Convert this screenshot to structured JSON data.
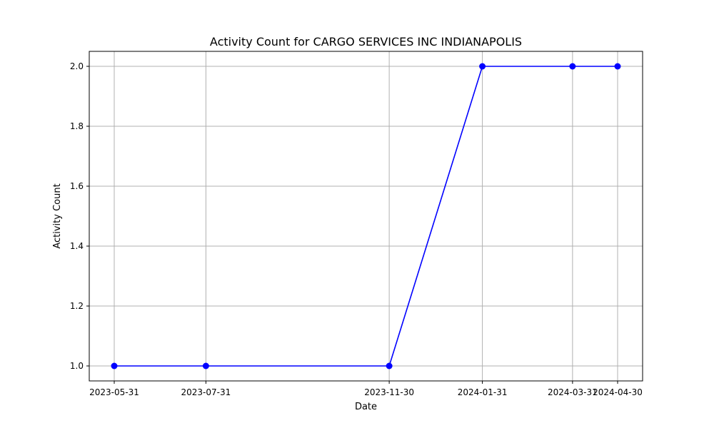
{
  "chart_data": {
    "type": "line",
    "title": "Activity Count for CARGO SERVICES INC INDIANAPOLIS",
    "xlabel": "Date",
    "ylabel": "Activity Count",
    "x": [
      "2023-05-31",
      "2023-07-31",
      "2023-11-30",
      "2024-01-31",
      "2024-03-31",
      "2024-04-30"
    ],
    "series": [
      {
        "values": [
          1,
          1,
          1,
          2,
          2,
          2
        ],
        "color": "#0000ff",
        "marker": "circle"
      }
    ],
    "yticks": [
      1.0,
      1.2,
      1.4,
      1.6,
      1.8,
      2.0
    ],
    "ylim": [
      0.95,
      2.05
    ],
    "grid": true,
    "legend": "none"
  }
}
